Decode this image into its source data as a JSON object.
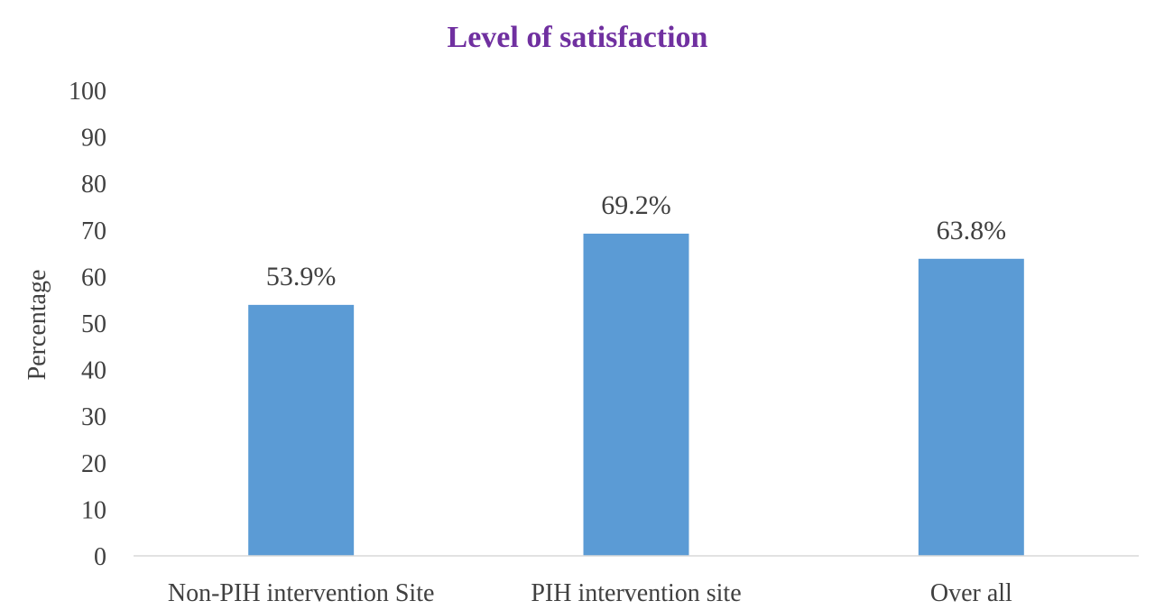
{
  "chart_data": {
    "type": "bar",
    "title": "Level of satisfaction",
    "xlabel": "",
    "ylabel": "Percentage",
    "categories": [
      "Non-PIH intervention Site",
      "PIH intervention site",
      "Over all"
    ],
    "values": [
      53.9,
      69.2,
      63.8
    ],
    "data_labels": [
      "53.9%",
      "69.2%",
      "63.8%"
    ],
    "ylim": [
      0,
      100
    ],
    "yticks": [
      0,
      10,
      20,
      30,
      40,
      50,
      60,
      70,
      80,
      90,
      100
    ],
    "grid": false,
    "legend": "none",
    "colors": {
      "bar": "#5b9bd5",
      "title": "#7030a0",
      "axis": "#d9d9d9",
      "text": "#404040"
    }
  }
}
